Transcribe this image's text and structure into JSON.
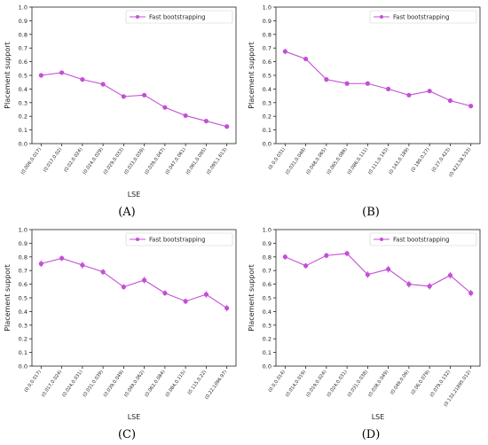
{
  "chart_data": [
    {
      "type": "line",
      "panel_label": "(A)",
      "xlabel": "LSE",
      "ylabel": "Placement support",
      "ylim": [
        0,
        1.0
      ],
      "yticks": [
        "0.0",
        "0.1",
        "0.2",
        "0.3",
        "0.4",
        "0.5",
        "0.6",
        "0.7",
        "0.8",
        "0.9",
        "1.0"
      ],
      "legend_position": "top-right",
      "grid": false,
      "categories": [
        "(0.006,0.017)",
        "(0.017,0.02)",
        "(0.02,0.024)",
        "(0.024,0.029)",
        "(0.029,0.033)",
        "(0.033,0.039)",
        "(0.039,0.047)",
        "(0.047,0.061)",
        "(0.061,0.095)",
        "(0.095,1.613)"
      ],
      "series": [
        {
          "name": "Fast bootstrapping",
          "values": [
            0.5,
            0.52,
            0.47,
            0.435,
            0.345,
            0.355,
            0.265,
            0.205,
            0.165,
            0.125
          ],
          "errors": [
            0.012,
            0.012,
            0.012,
            0.012,
            0.012,
            0.012,
            0.01,
            0.01,
            0.01,
            0.008
          ]
        }
      ]
    },
    {
      "type": "line",
      "panel_label": "(B)",
      "xlabel": "",
      "ylabel": "Placement support",
      "ylim": [
        0,
        1.0
      ],
      "yticks": [
        "0.0",
        "0.1",
        "0.2",
        "0.3",
        "0.4",
        "0.5",
        "0.6",
        "0.7",
        "0.8",
        "0.9",
        "1.0"
      ],
      "legend_position": "top-right",
      "grid": false,
      "categories": [
        "(0.0,0.031)",
        "(0.031,0.048)",
        "(0.048,0.065)",
        "(0.065,0.086)",
        "(0.086,0.111)",
        "(0.111,0.143)",
        "(0.143,0.189)",
        "(0.189,0.27)",
        "(0.27,0.423)",
        "(0.423,58.533)"
      ],
      "series": [
        {
          "name": "Fast bootstrapping",
          "values": [
            0.675,
            0.62,
            0.47,
            0.44,
            0.44,
            0.4,
            0.355,
            0.385,
            0.315,
            0.275
          ],
          "errors": [
            0.02,
            0.015,
            0.015,
            0.012,
            0.012,
            0.015,
            0.012,
            0.015,
            0.015,
            0.015
          ]
        }
      ]
    },
    {
      "type": "line",
      "panel_label": "(C)",
      "xlabel": "LSE",
      "ylabel": "Placement support",
      "ylim": [
        0,
        1.0
      ],
      "yticks": [
        "0.0",
        "0.1",
        "0.2",
        "0.3",
        "0.4",
        "0.5",
        "0.6",
        "0.7",
        "0.8",
        "0.9",
        "1.0"
      ],
      "legend_position": "top-right",
      "grid": false,
      "categories": [
        "(0.0,0.017)",
        "(0.017,0.024)",
        "(0.024,0.031)",
        "(0.031,0.039)",
        "(0.039,0.049)",
        "(0.049,0.062)",
        "(0.062,0.084)",
        "(0.084,0.115)",
        "(0.115,0.22)",
        "(0.22,1096.97)"
      ],
      "series": [
        {
          "name": "Fast bootstrapping",
          "values": [
            0.75,
            0.79,
            0.74,
            0.69,
            0.58,
            0.63,
            0.535,
            0.475,
            0.525,
            0.425
          ],
          "errors": [
            0.025,
            0.02,
            0.025,
            0.02,
            0.02,
            0.025,
            0.02,
            0.02,
            0.025,
            0.025
          ]
        }
      ]
    },
    {
      "type": "line",
      "panel_label": "(D)",
      "xlabel": "LSE",
      "ylabel": "Placement support",
      "ylim": [
        0,
        1.0
      ],
      "yticks": [
        "0.0",
        "0.1",
        "0.2",
        "0.3",
        "0.4",
        "0.5",
        "0.6",
        "0.7",
        "0.8",
        "0.9",
        "1.0"
      ],
      "legend_position": "top-right",
      "grid": false,
      "categories": [
        "(0.0,0.014)",
        "(0.014,0.019)",
        "(0.019,0.024)",
        "(0.024,0.031)",
        "(0.031,0.038)",
        "(0.038,0.049)",
        "(0.049,0.06)",
        "(0.06,0.079)",
        "(0.079,0.132)",
        "(0.132,21895.012)"
      ],
      "series": [
        {
          "name": "Fast bootstrapping",
          "values": [
            0.8,
            0.735,
            0.81,
            0.825,
            0.67,
            0.71,
            0.6,
            0.585,
            0.665,
            0.535
          ],
          "errors": [
            0.02,
            0.02,
            0.02,
            0.02,
            0.025,
            0.025,
            0.025,
            0.025,
            0.025,
            0.025
          ]
        }
      ]
    }
  ],
  "colors": {
    "series": "#c44fd6",
    "axis": "#222222"
  }
}
